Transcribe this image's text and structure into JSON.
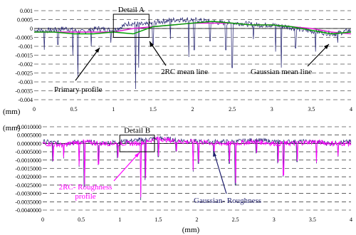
{
  "chart_data": [
    {
      "type": "line",
      "name": "top-panel",
      "xlim": [
        0,
        4
      ],
      "ylim": [
        -0.004,
        0.001
      ],
      "x_ticks": [
        0,
        0.5,
        1,
        1.5,
        2,
        2.5,
        3,
        3.5,
        4
      ],
      "x_tick_labels": [
        "0",
        "0.5",
        "1",
        "1.5",
        "2",
        "2.5",
        "3",
        "3.5",
        "4"
      ],
      "y_ticks": [
        0.001,
        0.0005,
        0,
        -0.0005,
        -0.001,
        -0.0015,
        -0.002,
        -0.0025,
        -0.003,
        -0.0035,
        -0.004
      ],
      "y_tick_labels": [
        "0.001",
        "0.0005",
        "0",
        "-0.0005",
        "-0.001",
        "-0.0015",
        "-0.002",
        "-0.0025",
        "-0.003",
        "-0.0035",
        "-0.004"
      ],
      "ylabel": "(mm)",
      "grid": "horizontal dashed",
      "colors": {
        "primary": "#1f1f6e",
        "rc": "#00a000",
        "gauss": "#e020d0"
      },
      "primary_profile": {
        "x": [
          0,
          0.2,
          0.4,
          0.6,
          0.8,
          1.0,
          1.2,
          1.4,
          1.6,
          1.8,
          2.0,
          2.2,
          2.4,
          2.6,
          2.8,
          3.0,
          3.2,
          3.4,
          3.6,
          3.8,
          4.0
        ],
        "y": [
          -0.0001,
          -0.0001,
          0,
          -0.0002,
          0,
          -0.0001,
          0.0003,
          0.0002,
          0.0004,
          0.0005,
          0.0005,
          0.0004,
          0.0003,
          0.0003,
          0.0002,
          0.0002,
          0.0001,
          -0.0001,
          -0.0002,
          -0.0003,
          -0.0001
        ]
      },
      "primary_dips": [
        {
          "x": 0.13,
          "y": -0.0012
        },
        {
          "x": 0.3,
          "y": -0.0009
        },
        {
          "x": 0.49,
          "y": -0.0015
        },
        {
          "x": 0.55,
          "y": -0.0027
        },
        {
          "x": 0.72,
          "y": -0.001
        },
        {
          "x": 0.97,
          "y": -0.0008
        },
        {
          "x": 1.28,
          "y": -0.0034
        },
        {
          "x": 1.32,
          "y": -0.0022
        },
        {
          "x": 1.5,
          "y": -0.0009
        },
        {
          "x": 1.72,
          "y": -0.0006
        },
        {
          "x": 1.95,
          "y": -0.0016
        },
        {
          "x": 2.02,
          "y": -0.0012
        },
        {
          "x": 2.22,
          "y": -0.0007
        },
        {
          "x": 2.42,
          "y": -0.0012
        },
        {
          "x": 2.5,
          "y": -0.0022
        },
        {
          "x": 2.77,
          "y": -0.0006
        },
        {
          "x": 3.05,
          "y": -0.0013
        },
        {
          "x": 3.12,
          "y": -0.0022
        },
        {
          "x": 3.3,
          "y": -0.0011
        },
        {
          "x": 3.55,
          "y": -0.0013
        },
        {
          "x": 3.83,
          "y": -0.0008
        }
      ],
      "rc_mean_line": {
        "x": [
          0,
          0.25,
          0.5,
          0.75,
          1.0,
          1.25,
          1.5,
          1.75,
          2.0,
          2.25,
          2.5,
          2.75,
          3.0,
          3.25,
          3.5,
          3.75,
          4.0
        ],
        "y": [
          -0.0002,
          -0.0002,
          -0.0003,
          -0.0003,
          -0.0002,
          -0.0003,
          0.0001,
          0.0002,
          0.0003,
          0.0004,
          0.0003,
          0.0002,
          0.0002,
          0.0001,
          -0.0001,
          -0.0003,
          -0.0002
        ]
      },
      "gaussian_mean_line": {
        "x": [
          0,
          0.25,
          0.5,
          0.75,
          1.0,
          1.25,
          1.5,
          1.75,
          2.0,
          2.25,
          2.5,
          2.75,
          3.0,
          3.25,
          3.5,
          3.75,
          4.0
        ],
        "y": [
          -0.0002,
          -0.0002,
          -0.0002,
          -0.0002,
          -0.0002,
          0,
          0.0001,
          0.0002,
          0.0003,
          0.0003,
          0.0003,
          0.0002,
          0.0002,
          0.0001,
          0,
          -0.0002,
          -0.0003
        ]
      },
      "detail_box": {
        "label": "Detail A",
        "x": [
          1.0,
          1.45
        ],
        "y": [
          -0.0005,
          0.0008
        ]
      },
      "annotations": {
        "primary": "Primary profile",
        "rc": "2RC mean line",
        "gauss": "Gaussian mean line"
      }
    },
    {
      "type": "line",
      "name": "bottom-panel",
      "xlim": [
        0,
        4
      ],
      "ylim": [
        -0.004,
        0.001
      ],
      "x_ticks": [
        0,
        0.5,
        1,
        1.5,
        2,
        2.5,
        3,
        3.5,
        4
      ],
      "x_tick_labels": [
        "0",
        "0.5",
        "1",
        "1.5",
        "2",
        "2.5",
        "3",
        "3.5",
        "4"
      ],
      "y_ticks": [
        0.001,
        0.0005,
        0,
        -0.0005,
        -0.001,
        -0.0015,
        -0.002,
        -0.0025,
        -0.003,
        -0.0035,
        -0.004
      ],
      "y_tick_labels": [
        "0.0010000",
        "0.0005000",
        "0.0000000",
        "-0.0005000",
        "-0.0010000",
        "-0.0015000",
        "-0.0020000",
        "-0.0025000",
        "-0.0030000",
        "-0.0035000",
        "-0.0040000"
      ],
      "ylabel": "(mm)",
      "xlabel": "(mm)",
      "grid": "horizontal dashed",
      "colors": {
        "rc": "#ff00ff",
        "gauss": "#1f1f6e"
      },
      "rc_roughness": {
        "x": [
          0,
          0.25,
          0.5,
          0.75,
          1.0,
          1.25,
          1.5,
          1.75,
          2.0,
          2.25,
          2.5,
          2.75,
          3.0,
          3.25,
          3.5,
          3.75,
          4.0
        ],
        "y": [
          0,
          -0.0001,
          0.0001,
          0,
          0,
          0,
          0.0003,
          0.0001,
          0.0001,
          0,
          0,
          0.0001,
          0,
          0,
          0.0001,
          0,
          0
        ]
      },
      "gauss_roughness": {
        "x": [
          0,
          0.25,
          0.5,
          0.75,
          1.0,
          1.25,
          1.5,
          1.75,
          2.0,
          2.25,
          2.5,
          2.75,
          3.0,
          3.25,
          3.5,
          3.75,
          4.0
        ],
        "y": [
          0.0001,
          0,
          0.0001,
          0,
          0.0001,
          0.0002,
          0.0003,
          0.0002,
          0.0001,
          0.0001,
          0.0001,
          0.0002,
          0.0001,
          0.0001,
          0.0001,
          0,
          0.0001
        ]
      },
      "dips": [
        {
          "x": 0.13,
          "y": -0.0011
        },
        {
          "x": 0.27,
          "y": -0.0009
        },
        {
          "x": 0.47,
          "y": -0.0014
        },
        {
          "x": 0.54,
          "y": -0.0026
        },
        {
          "x": 0.72,
          "y": -0.0013
        },
        {
          "x": 0.97,
          "y": -0.0009
        },
        {
          "x": 1.27,
          "y": -0.0034
        },
        {
          "x": 1.33,
          "y": -0.0022
        },
        {
          "x": 1.5,
          "y": -0.0008
        },
        {
          "x": 1.73,
          "y": -0.0005
        },
        {
          "x": 1.95,
          "y": -0.0017
        },
        {
          "x": 2.02,
          "y": -0.0012
        },
        {
          "x": 2.22,
          "y": -0.0007
        },
        {
          "x": 2.42,
          "y": -0.0012
        },
        {
          "x": 2.5,
          "y": -0.0025
        },
        {
          "x": 2.77,
          "y": -0.0006
        },
        {
          "x": 3.05,
          "y": -0.0012
        },
        {
          "x": 3.12,
          "y": -0.002
        },
        {
          "x": 3.3,
          "y": -0.0011
        },
        {
          "x": 3.55,
          "y": -0.0012
        },
        {
          "x": 3.83,
          "y": -0.0008
        }
      ],
      "detail_box": {
        "label": "Detail B",
        "x": [
          1.0,
          1.45
        ],
        "y": [
          -0.0005,
          0.0005
        ]
      },
      "annotations": {
        "rc_line1": "2RC- Roughness",
        "rc_line2": "profile",
        "gauss": "Gaussian- Roughness"
      }
    }
  ]
}
